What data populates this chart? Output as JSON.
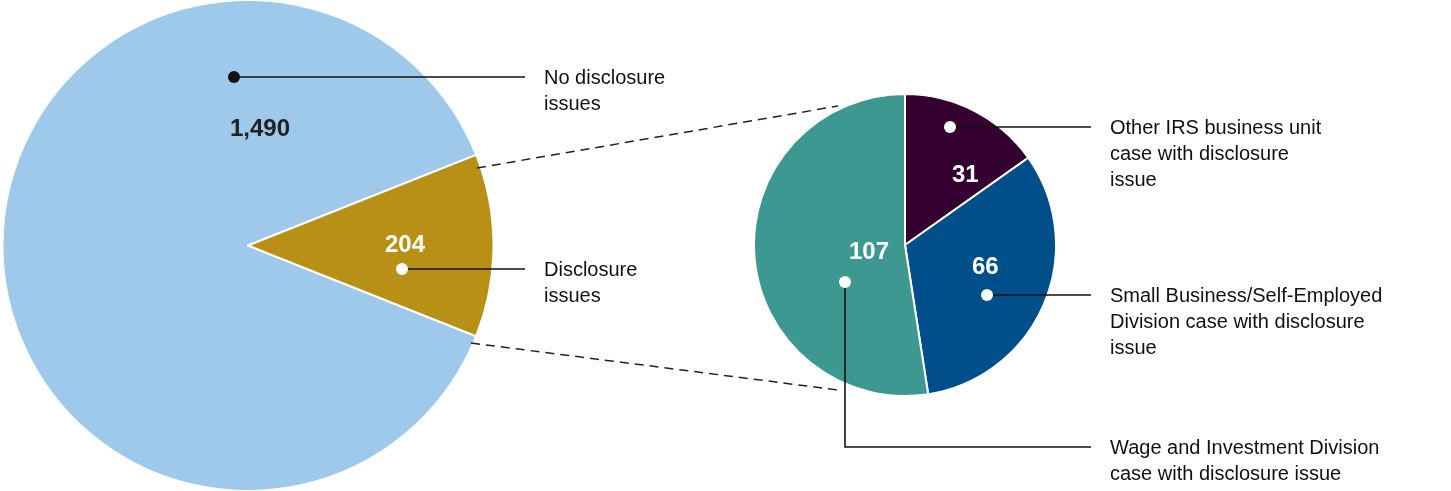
{
  "chart_data": [
    {
      "type": "pie",
      "categories": [
        "No disclosure issues",
        "Disclosure issues"
      ],
      "values": [
        1490,
        204
      ],
      "colors": [
        "#9fc9ea",
        "#b89015"
      ],
      "value_labels": [
        "1,490",
        "204"
      ]
    },
    {
      "type": "pie",
      "categories": [
        "Other IRS business unit case with disclosure issue",
        "Small Business/Self-Employed Division case with disclosure issue",
        "Wage and Investment Division case with disclosure issue"
      ],
      "values": [
        31,
        66,
        107
      ],
      "colors": [
        "#330030",
        "#004f8b",
        "#3d9891"
      ],
      "data_labels": true
    }
  ]
}
